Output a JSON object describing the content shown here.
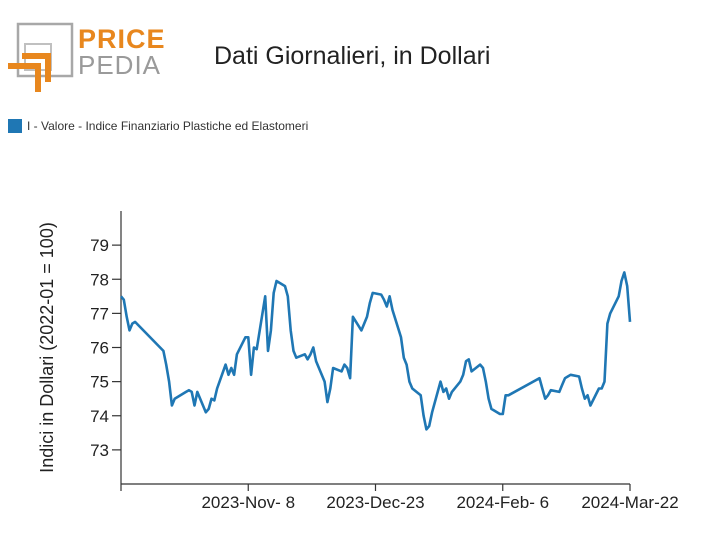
{
  "logo": {
    "line1": "PRICE",
    "line2": "PEDIA",
    "accent_color": "#e8871e",
    "gray_color": "#9a9a9a"
  },
  "title": "Dati Giornalieri, in Dollari",
  "legend": {
    "label": "I - Valore - Indice Finanziario Plastiche ed Elastomeri",
    "color": "#1f77b4"
  },
  "chart_data": {
    "type": "line",
    "title": "Dati Giornalieri, in Dollari",
    "ylabel": "Indici in Dollari (2022-01 = 100)",
    "xlabel": "",
    "ylim": [
      72,
      80
    ],
    "yticks": [
      73,
      74,
      75,
      76,
      77,
      78,
      79
    ],
    "xrange": [
      "2023-09-24",
      "2024-03-22"
    ],
    "xticks": [
      {
        "date": "2023-11-08",
        "label": "2023-Nov- 8"
      },
      {
        "date": "2023-12-23",
        "label": "2023-Dec-23"
      },
      {
        "date": "2024-02-06",
        "label": "2024-Feb- 6"
      },
      {
        "date": "2024-03-22",
        "label": "2024-Mar-22"
      }
    ],
    "series": [
      {
        "name": "I - Valore - Indice Finanziario Plastiche ed Elastomeri",
        "color": "#1f77b4",
        "points": [
          [
            "2023-09-24",
            77.5
          ],
          [
            "2023-09-25",
            77.4
          ],
          [
            "2023-09-26",
            76.9
          ],
          [
            "2023-09-27",
            76.5
          ],
          [
            "2023-09-28",
            76.7
          ],
          [
            "2023-09-29",
            76.75
          ],
          [
            "2023-10-09",
            75.9
          ],
          [
            "2023-10-10",
            75.5
          ],
          [
            "2023-10-11",
            75.0
          ],
          [
            "2023-10-12",
            74.3
          ],
          [
            "2023-10-13",
            74.5
          ],
          [
            "2023-10-17",
            74.7
          ],
          [
            "2023-10-18",
            74.75
          ],
          [
            "2023-10-19",
            74.7
          ],
          [
            "2023-10-20",
            74.3
          ],
          [
            "2023-10-21",
            74.7
          ],
          [
            "2023-10-24",
            74.1
          ],
          [
            "2023-10-25",
            74.2
          ],
          [
            "2023-10-26",
            74.5
          ],
          [
            "2023-10-27",
            74.45
          ],
          [
            "2023-10-28",
            74.8
          ],
          [
            "2023-10-31",
            75.5
          ],
          [
            "2023-11-01",
            75.2
          ],
          [
            "2023-11-02",
            75.4
          ],
          [
            "2023-11-03",
            75.2
          ],
          [
            "2023-11-04",
            75.8
          ],
          [
            "2023-11-07",
            76.3
          ],
          [
            "2023-11-08",
            76.3
          ],
          [
            "2023-11-09",
            75.2
          ],
          [
            "2023-11-10",
            76.0
          ],
          [
            "2023-11-11",
            75.95
          ],
          [
            "2023-11-14",
            77.5
          ],
          [
            "2023-11-15",
            75.9
          ],
          [
            "2023-11-16",
            76.5
          ],
          [
            "2023-11-17",
            77.6
          ],
          [
            "2023-11-18",
            77.95
          ],
          [
            "2023-11-21",
            77.8
          ],
          [
            "2023-11-22",
            77.5
          ],
          [
            "2023-11-23",
            76.5
          ],
          [
            "2023-11-24",
            75.9
          ],
          [
            "2023-11-25",
            75.7
          ],
          [
            "2023-11-28",
            75.8
          ],
          [
            "2023-11-29",
            75.65
          ],
          [
            "2023-11-30",
            75.8
          ],
          [
            "2023-12-01",
            76.0
          ],
          [
            "2023-12-02",
            75.6
          ],
          [
            "2023-12-05",
            75.0
          ],
          [
            "2023-12-06",
            74.4
          ],
          [
            "2023-12-07",
            74.8
          ],
          [
            "2023-12-08",
            75.4
          ],
          [
            "2023-12-11",
            75.3
          ],
          [
            "2023-12-12",
            75.5
          ],
          [
            "2023-12-13",
            75.4
          ],
          [
            "2023-12-14",
            75.1
          ],
          [
            "2023-12-15",
            76.9
          ],
          [
            "2023-12-18",
            76.5
          ],
          [
            "2023-12-19",
            76.7
          ],
          [
            "2023-12-20",
            76.9
          ],
          [
            "2023-12-21",
            77.3
          ],
          [
            "2023-12-22",
            77.6
          ],
          [
            "2023-12-25",
            77.55
          ],
          [
            "2023-12-26",
            77.4
          ],
          [
            "2023-12-27",
            77.2
          ],
          [
            "2023-12-28",
            77.5
          ],
          [
            "2023-12-29",
            77.1
          ],
          [
            "2024-01-01",
            76.3
          ],
          [
            "2024-01-02",
            75.7
          ],
          [
            "2024-01-03",
            75.5
          ],
          [
            "2024-01-04",
            75.0
          ],
          [
            "2024-01-05",
            74.8
          ],
          [
            "2024-01-08",
            74.6
          ],
          [
            "2024-01-09",
            74.0
          ],
          [
            "2024-01-10",
            73.6
          ],
          [
            "2024-01-11",
            73.7
          ],
          [
            "2024-01-12",
            74.1
          ],
          [
            "2024-01-15",
            75.0
          ],
          [
            "2024-01-16",
            74.7
          ],
          [
            "2024-01-17",
            74.8
          ],
          [
            "2024-01-18",
            74.5
          ],
          [
            "2024-01-19",
            74.7
          ],
          [
            "2024-01-22",
            75.0
          ],
          [
            "2024-01-23",
            75.2
          ],
          [
            "2024-01-24",
            75.6
          ],
          [
            "2024-01-25",
            75.65
          ],
          [
            "2024-01-26",
            75.3
          ],
          [
            "2024-01-29",
            75.5
          ],
          [
            "2024-01-30",
            75.4
          ],
          [
            "2024-01-31",
            75.0
          ],
          [
            "2024-02-01",
            74.5
          ],
          [
            "2024-02-02",
            74.2
          ],
          [
            "2024-02-05",
            74.05
          ],
          [
            "2024-02-06",
            74.05
          ],
          [
            "2024-02-07",
            74.6
          ],
          [
            "2024-02-08",
            74.6
          ],
          [
            "2024-02-19",
            75.1
          ],
          [
            "2024-02-20",
            74.8
          ],
          [
            "2024-02-21",
            74.5
          ],
          [
            "2024-02-22",
            74.6
          ],
          [
            "2024-02-23",
            74.75
          ],
          [
            "2024-02-26",
            74.7
          ],
          [
            "2024-02-27",
            74.9
          ],
          [
            "2024-02-28",
            75.1
          ],
          [
            "2024-02-29",
            75.15
          ],
          [
            "2024-03-01",
            75.2
          ],
          [
            "2024-03-04",
            75.15
          ],
          [
            "2024-03-05",
            74.8
          ],
          [
            "2024-03-06",
            74.5
          ],
          [
            "2024-03-07",
            74.6
          ],
          [
            "2024-03-08",
            74.3
          ],
          [
            "2024-03-11",
            74.8
          ],
          [
            "2024-03-12",
            74.8
          ],
          [
            "2024-03-13",
            75.0
          ],
          [
            "2024-03-14",
            76.7
          ],
          [
            "2024-03-15",
            77.0
          ],
          [
            "2024-03-18",
            77.5
          ],
          [
            "2024-03-19",
            77.95
          ],
          [
            "2024-03-20",
            78.2
          ],
          [
            "2024-03-21",
            77.8
          ],
          [
            "2024-03-22",
            76.75
          ]
        ]
      }
    ]
  }
}
